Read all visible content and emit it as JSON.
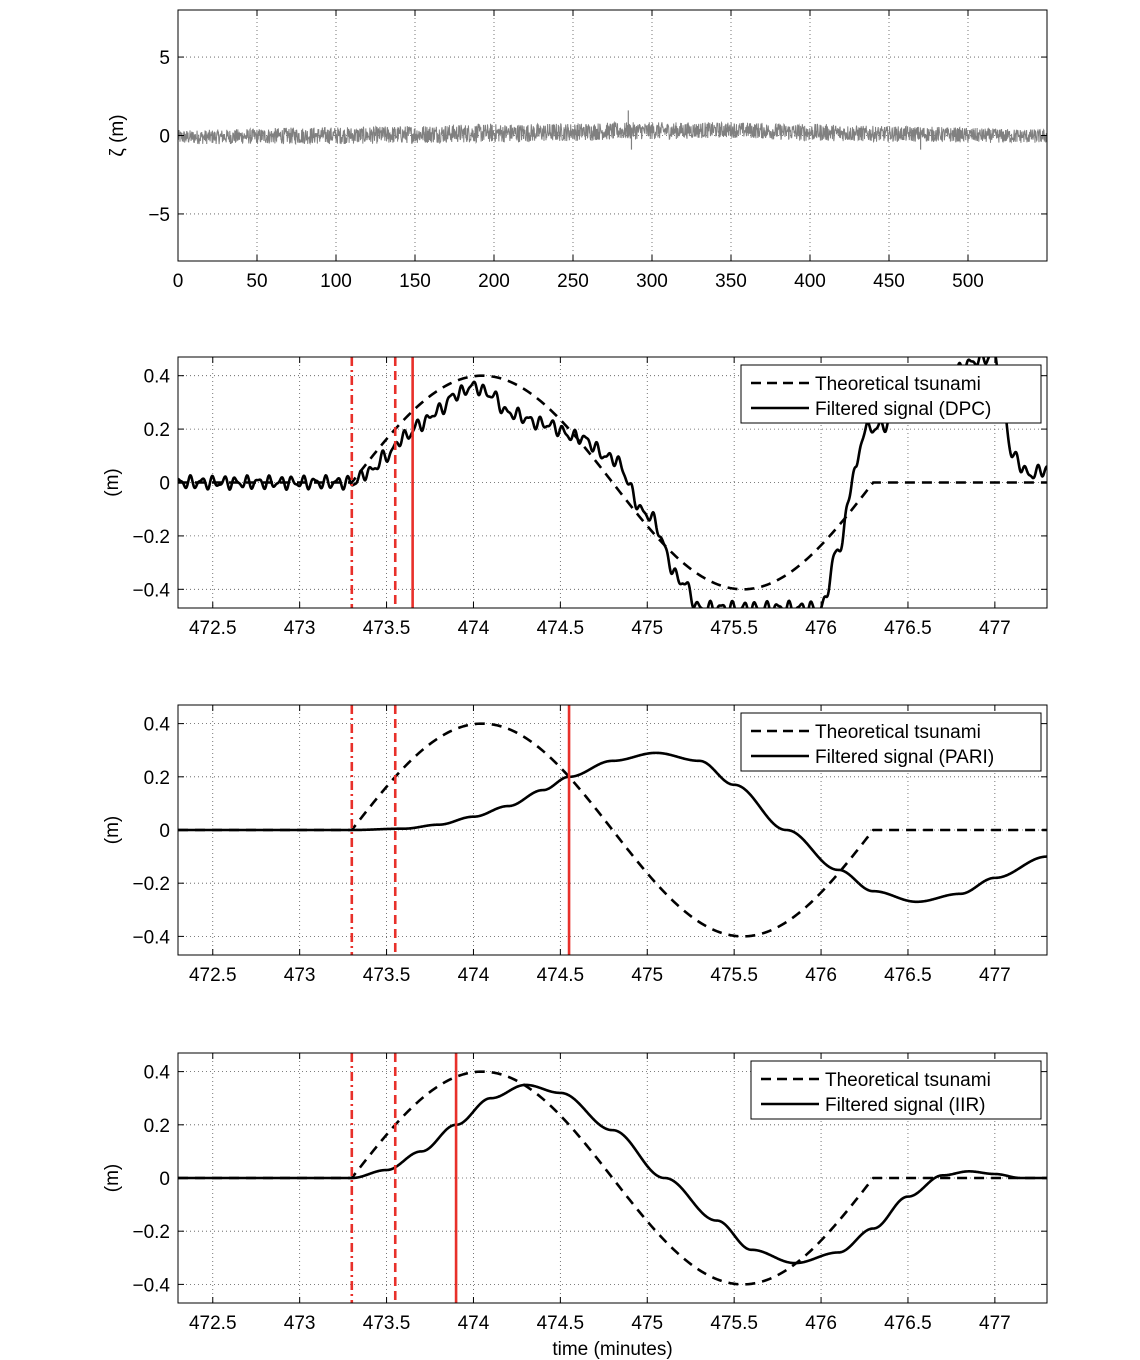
{
  "chart_data": [
    {
      "type": "line",
      "ylabel": "ζ (m)",
      "xlabel": "",
      "xlim": [
        0,
        550
      ],
      "ylim": [
        -8,
        8
      ],
      "xticks": [
        0,
        50,
        100,
        150,
        200,
        250,
        300,
        350,
        400,
        450,
        500
      ],
      "yticks": [
        -5,
        0,
        5
      ],
      "ytick_labels": [
        "−5",
        "0",
        "5"
      ],
      "grid": true,
      "series": [
        {
          "kind": "noise",
          "color": "#808080",
          "envelope_x": [
            0,
            100,
            200,
            300,
            350,
            400,
            450,
            550
          ],
          "center": [
            -0.1,
            0.0,
            0.15,
            0.3,
            0.35,
            0.2,
            0.1,
            -0.05
          ],
          "half_width": [
            0.45,
            0.55,
            0.6,
            0.55,
            0.5,
            0.55,
            0.5,
            0.45
          ],
          "spikes": [
            {
              "x": 285,
              "y": 1.6
            },
            {
              "x": 287,
              "y": -0.9
            },
            {
              "x": 470,
              "y": -0.9
            }
          ]
        }
      ]
    },
    {
      "type": "line",
      "ylabel": "(m)",
      "xlabel": "",
      "xlim": [
        472.3,
        477.3
      ],
      "ylim": [
        -0.47,
        0.47
      ],
      "xticks": [
        472.5,
        473,
        473.5,
        474,
        474.5,
        475,
        475.5,
        476,
        476.5,
        477
      ],
      "yticks": [
        -0.4,
        -0.2,
        0,
        0.2,
        0.4
      ],
      "ytick_labels": [
        "−0.4",
        "−0.2",
        "0",
        "0.2",
        "0.4"
      ],
      "grid": true,
      "legend": {
        "position": "top-right",
        "entries": [
          {
            "label": "Theoretical tsunami",
            "style": "dashed"
          },
          {
            "label": "Filtered signal (DPC)",
            "style": "solid"
          }
        ]
      },
      "markers": [
        {
          "x": 473.3,
          "style": "dashdot",
          "color": "#e8302a"
        },
        {
          "x": 473.55,
          "style": "dashed",
          "color": "#e8302a"
        },
        {
          "x": 473.65,
          "style": "solid",
          "color": "#e8302a"
        }
      ],
      "series": [
        {
          "name": "Theoretical tsunami",
          "style": "dashed",
          "kind": "tsunami",
          "t0": 473.3,
          "t1": 476.3,
          "amp": 0.4
        },
        {
          "name": "Filtered signal (DPC)",
          "style": "solid",
          "ripple": 0.018,
          "x": [
            472.3,
            473.3,
            473.4,
            473.5,
            473.6,
            473.7,
            473.8,
            473.9,
            474.0,
            474.1,
            474.2,
            474.4,
            474.6,
            474.8,
            475.0,
            475.2,
            475.3,
            476.0,
            476.1,
            476.2,
            476.25,
            477.0,
            477.05,
            477.1,
            477.2,
            477.3
          ],
          "y": [
            0.0,
            0.0,
            0.04,
            0.1,
            0.17,
            0.22,
            0.27,
            0.33,
            0.36,
            0.33,
            0.26,
            0.22,
            0.17,
            0.09,
            -0.12,
            -0.37,
            -0.47,
            -0.47,
            -0.25,
            0.05,
            0.2,
            0.47,
            0.28,
            0.1,
            0.03,
            0.05
          ]
        }
      ]
    },
    {
      "type": "line",
      "ylabel": "(m)",
      "xlabel": "",
      "xlim": [
        472.3,
        477.3
      ],
      "ylim": [
        -0.47,
        0.47
      ],
      "xticks": [
        472.5,
        473,
        473.5,
        474,
        474.5,
        475,
        475.5,
        476,
        476.5,
        477
      ],
      "yticks": [
        -0.4,
        -0.2,
        0,
        0.2,
        0.4
      ],
      "ytick_labels": [
        "−0.4",
        "−0.2",
        "0",
        "0.2",
        "0.4"
      ],
      "grid": true,
      "legend": {
        "position": "top-right",
        "entries": [
          {
            "label": "Theoretical tsunami",
            "style": "dashed"
          },
          {
            "label": "Filtered signal (PARI)",
            "style": "solid"
          }
        ]
      },
      "markers": [
        {
          "x": 473.3,
          "style": "dashdot",
          "color": "#e8302a"
        },
        {
          "x": 473.55,
          "style": "dashed",
          "color": "#e8302a"
        },
        {
          "x": 474.55,
          "style": "solid",
          "color": "#e8302a"
        }
      ],
      "series": [
        {
          "name": "Theoretical tsunami",
          "style": "dashed",
          "kind": "tsunami",
          "t0": 473.3,
          "t1": 476.3,
          "amp": 0.4
        },
        {
          "name": "Filtered signal (PARI)",
          "style": "solid",
          "ripple": 0,
          "x": [
            472.3,
            473.3,
            473.6,
            473.8,
            474.0,
            474.2,
            474.4,
            474.55,
            474.8,
            475.05,
            475.3,
            475.5,
            475.8,
            476.1,
            476.3,
            476.55,
            476.8,
            477.0,
            477.3
          ],
          "y": [
            0.0,
            0.0,
            0.005,
            0.02,
            0.05,
            0.09,
            0.15,
            0.2,
            0.26,
            0.29,
            0.26,
            0.17,
            0.0,
            -0.15,
            -0.23,
            -0.27,
            -0.24,
            -0.18,
            -0.1
          ]
        }
      ]
    },
    {
      "type": "line",
      "ylabel": "(m)",
      "xlabel": "time (minutes)",
      "xlim": [
        472.3,
        477.3
      ],
      "ylim": [
        -0.47,
        0.47
      ],
      "xticks": [
        472.5,
        473,
        473.5,
        474,
        474.5,
        475,
        475.5,
        476,
        476.5,
        477
      ],
      "yticks": [
        -0.4,
        -0.2,
        0,
        0.2,
        0.4
      ],
      "ytick_labels": [
        "−0.4",
        "−0.2",
        "0",
        "0.2",
        "0.4"
      ],
      "grid": true,
      "legend": {
        "position": "top-right",
        "entries": [
          {
            "label": "Theoretical tsunami",
            "style": "dashed"
          },
          {
            "label": "Filtered signal (IIR)",
            "style": "solid"
          }
        ]
      },
      "markers": [
        {
          "x": 473.3,
          "style": "dashdot",
          "color": "#e8302a"
        },
        {
          "x": 473.55,
          "style": "dashed",
          "color": "#e8302a"
        },
        {
          "x": 473.9,
          "style": "solid",
          "color": "#e8302a"
        }
      ],
      "series": [
        {
          "name": "Theoretical tsunami",
          "style": "dashed",
          "kind": "tsunami",
          "t0": 473.3,
          "t1": 476.3,
          "amp": 0.4
        },
        {
          "name": "Filtered signal (IIR)",
          "style": "solid",
          "ripple": 0,
          "x": [
            472.3,
            473.3,
            473.5,
            473.7,
            473.9,
            474.1,
            474.3,
            474.5,
            474.8,
            475.1,
            475.4,
            475.6,
            475.85,
            476.1,
            476.3,
            476.5,
            476.7,
            476.85,
            477.0,
            477.15,
            477.3
          ],
          "y": [
            0.0,
            0.0,
            0.03,
            0.1,
            0.2,
            0.3,
            0.35,
            0.32,
            0.18,
            0.0,
            -0.16,
            -0.27,
            -0.32,
            -0.28,
            -0.19,
            -0.07,
            0.01,
            0.025,
            0.015,
            0.0,
            0.0
          ]
        }
      ]
    }
  ]
}
